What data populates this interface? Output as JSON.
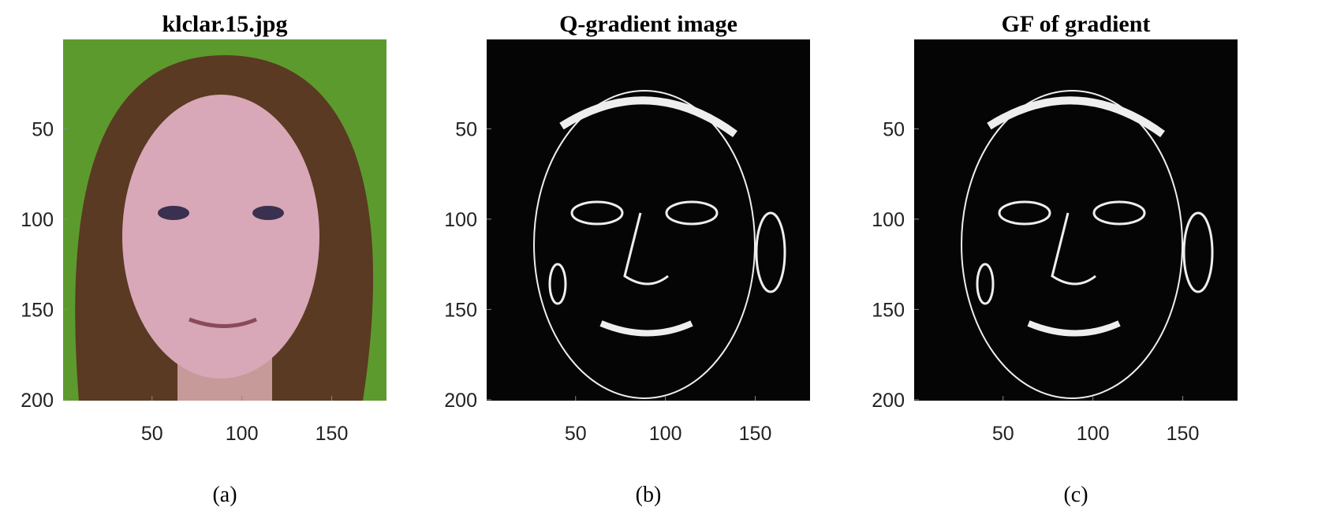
{
  "chart_data": [
    {
      "type": "image",
      "title": "klclar.15.jpg",
      "caption": "(a)",
      "style": "photo",
      "xlim": [
        0.5,
        180.5
      ],
      "ylim": [
        200.5,
        0.5
      ],
      "xticks": [
        50,
        100,
        150
      ],
      "yticks": [
        50,
        100,
        150,
        200
      ]
    },
    {
      "type": "image",
      "title": "Q-gradient image",
      "caption": "(b)",
      "style": "gradient",
      "xlim": [
        0.5,
        180.5
      ],
      "ylim": [
        200.5,
        0.5
      ],
      "xticks": [
        50,
        100,
        150
      ],
      "yticks": [
        50,
        100,
        150,
        200
      ]
    },
    {
      "type": "image",
      "title": "GF of gradient",
      "caption": "(c)",
      "style": "gradient",
      "xlim": [
        0.5,
        180.5
      ],
      "ylim": [
        200.5,
        0.5
      ],
      "xticks": [
        50,
        100,
        150
      ],
      "yticks": [
        50,
        100,
        150,
        200
      ]
    }
  ]
}
